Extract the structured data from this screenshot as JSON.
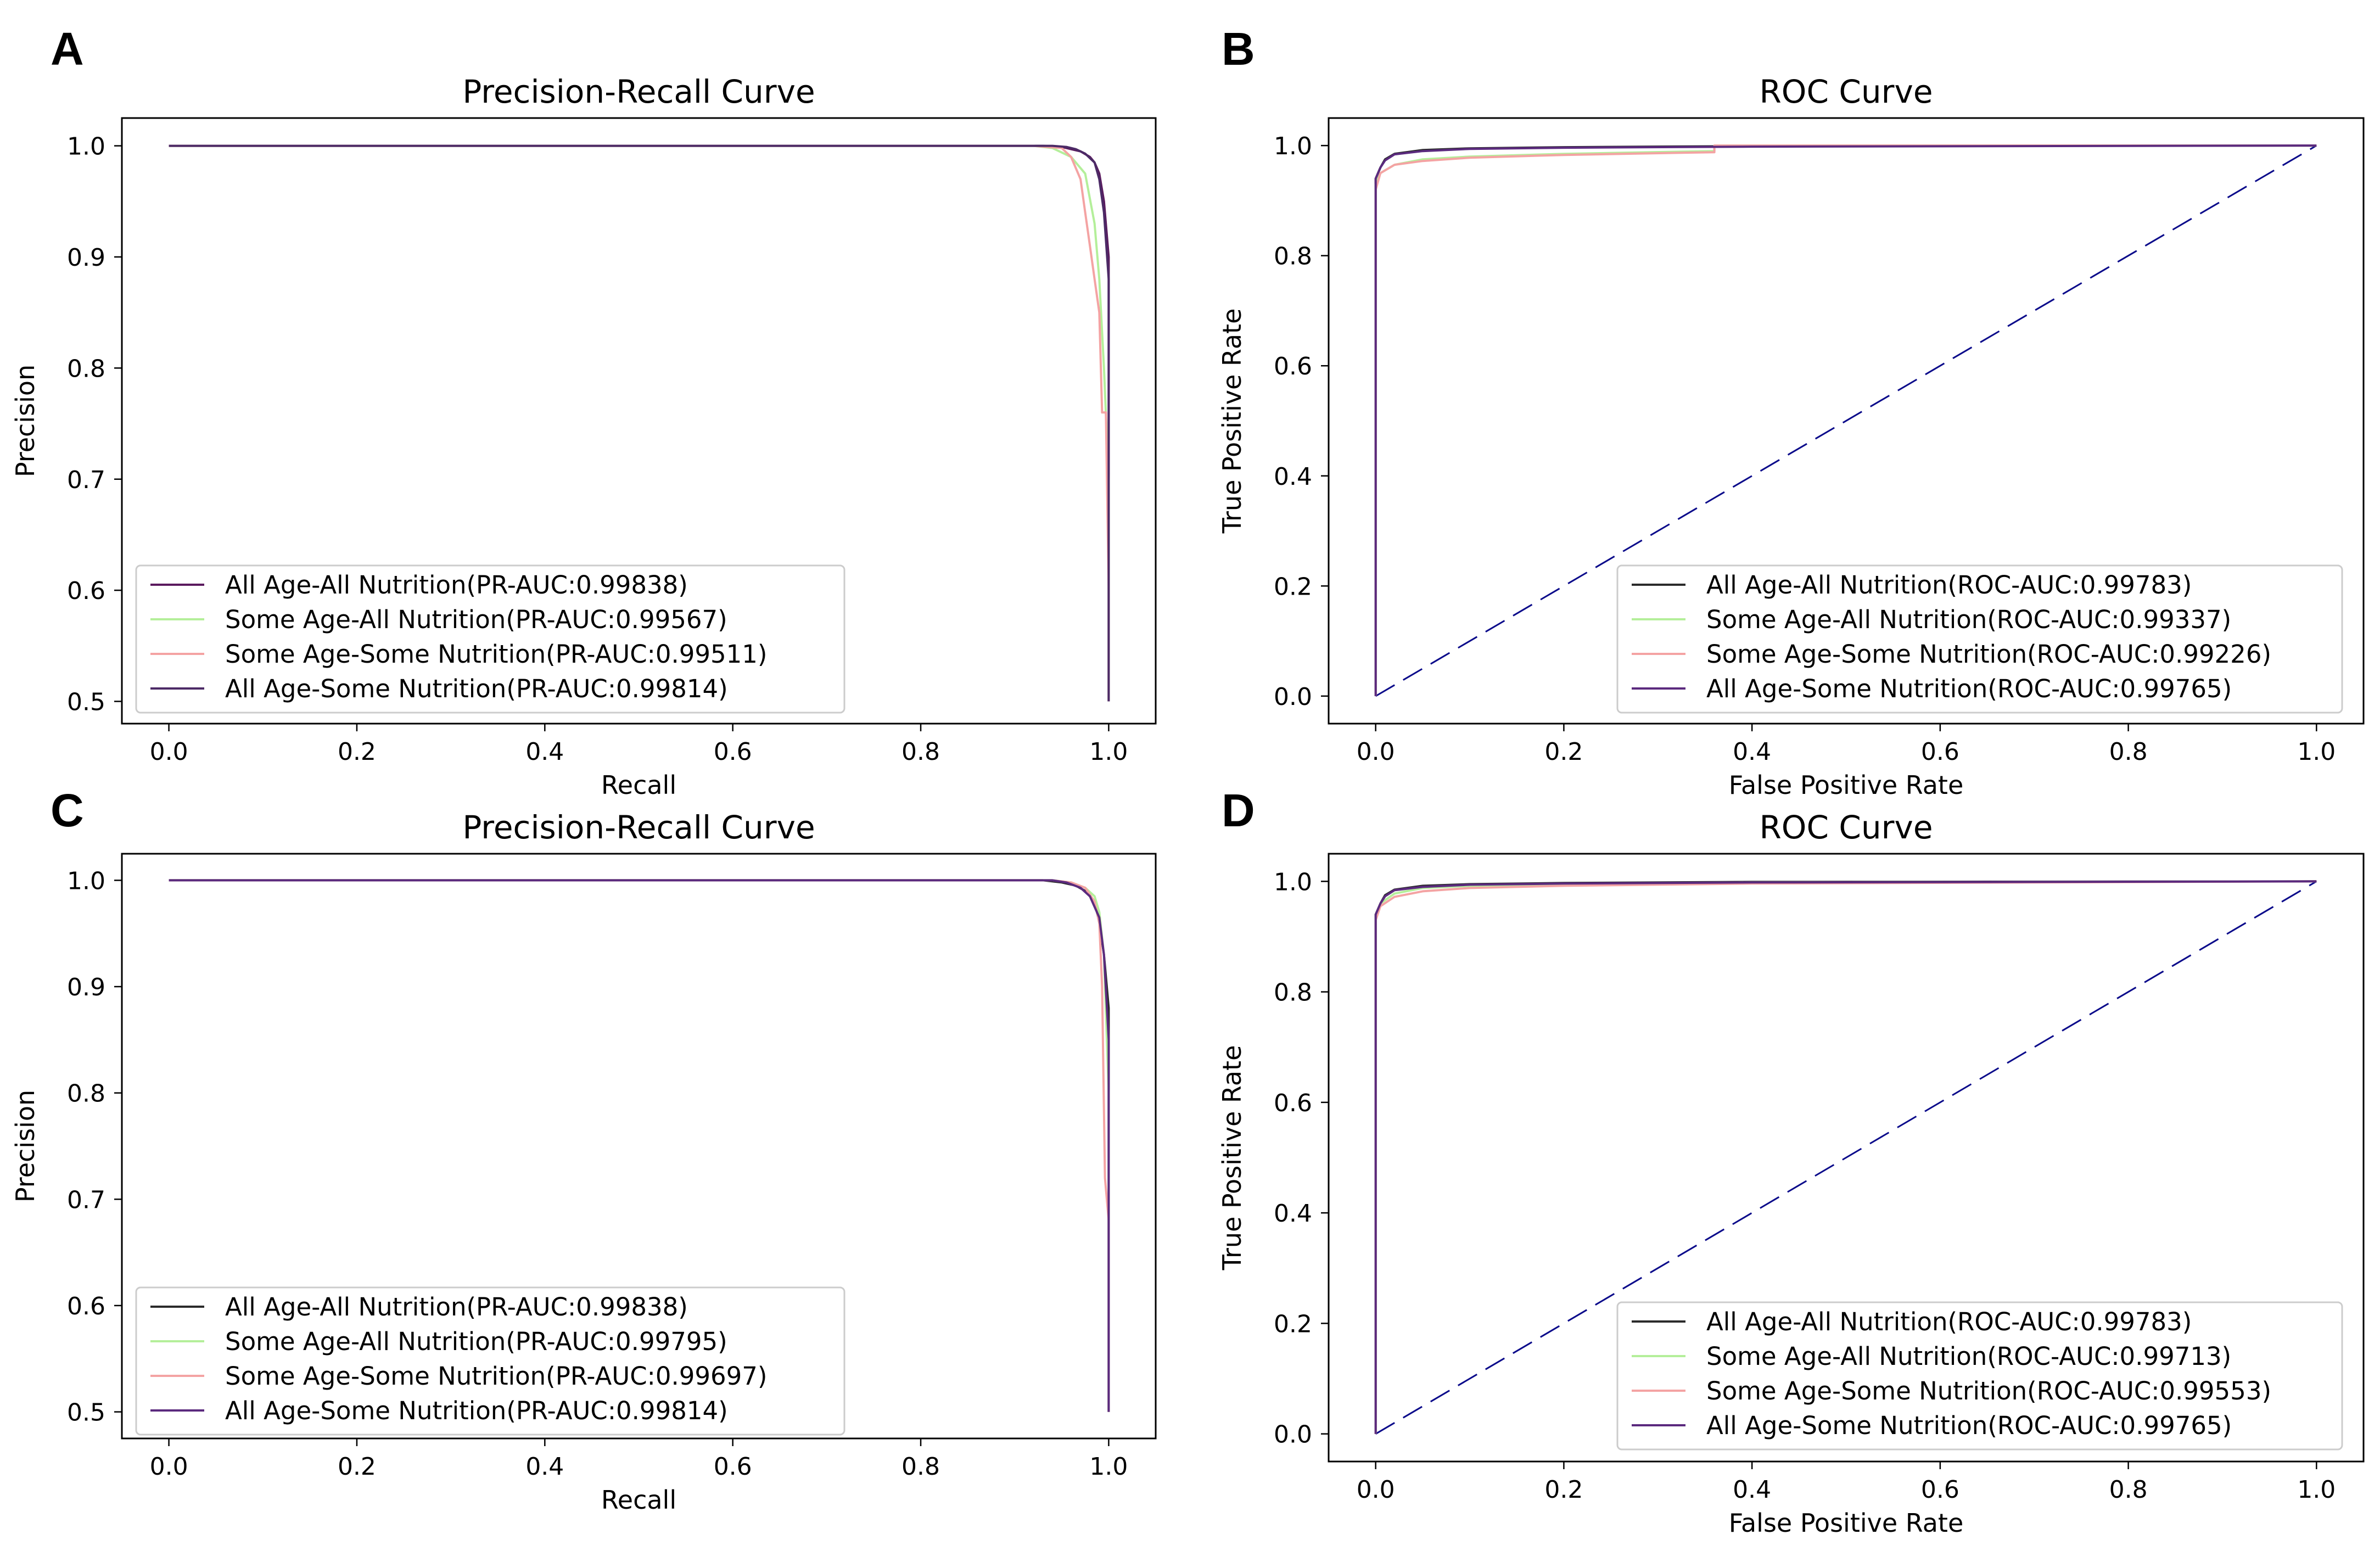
{
  "chart_data": [
    {
      "id": "A",
      "panel_label": "A",
      "type": "line",
      "kind": "pr",
      "title": "Precision-Recall Curve",
      "xlabel": "Recall",
      "ylabel": "Precision",
      "xlim": [
        -0.05,
        1.05
      ],
      "ylim": [
        0.48,
        1.025
      ],
      "xticks": [
        0.0,
        0.2,
        0.4,
        0.6,
        0.8,
        1.0
      ],
      "xtick_labels": [
        "0.0",
        "0.2",
        "0.4",
        "0.6",
        "0.8",
        "1.0"
      ],
      "yticks": [
        0.5,
        0.6,
        0.7,
        0.8,
        0.9,
        1.0
      ],
      "ytick_labels": [
        "0.5",
        "0.6",
        "0.7",
        "0.8",
        "0.9",
        "1.0"
      ],
      "grid": false,
      "legend_position": "lower-left",
      "series": [
        {
          "name": "All Age-All Nutrition(PR-AUC:0.99838)",
          "color": "#5b1a5e",
          "x": [
            0,
            0.93,
            0.95,
            0.96,
            0.97,
            0.98,
            0.985,
            0.99,
            0.995,
            1.0,
            1.0
          ],
          "y": [
            1.0,
            1.0,
            0.999,
            0.997,
            0.995,
            0.99,
            0.985,
            0.975,
            0.95,
            0.9,
            0.5
          ]
        },
        {
          "name": "Some Age-All Nutrition(PR-AUC:0.99567)",
          "color": "#b4ef9a",
          "x": [
            0,
            0.92,
            0.94,
            0.96,
            0.975,
            0.985,
            0.99,
            0.995,
            1.0,
            1.0
          ],
          "y": [
            1.0,
            1.0,
            0.998,
            0.99,
            0.975,
            0.93,
            0.88,
            0.8,
            0.7,
            0.5
          ]
        },
        {
          "name": "Some Age-Some Nutrition(PR-AUC:0.99511)",
          "color": "#f4a3a3",
          "x": [
            0,
            0.92,
            0.95,
            0.96,
            0.97,
            0.975,
            0.98,
            0.985,
            0.99,
            0.993,
            0.993,
            0.997,
            1.0,
            1.0
          ],
          "y": [
            1.0,
            1.0,
            0.998,
            0.99,
            0.97,
            0.94,
            0.91,
            0.88,
            0.85,
            0.76,
            0.76,
            0.76,
            0.6,
            0.5
          ]
        },
        {
          "name": "All Age-Some Nutrition(PR-AUC:0.99814)",
          "color": "#4c2a66",
          "x": [
            0,
            0.94,
            0.955,
            0.965,
            0.975,
            0.985,
            0.99,
            0.995,
            1.0,
            1.0
          ],
          "y": [
            1.0,
            1.0,
            0.999,
            0.997,
            0.993,
            0.985,
            0.97,
            0.94,
            0.88,
            0.5
          ]
        }
      ]
    },
    {
      "id": "B",
      "panel_label": "B",
      "type": "line",
      "kind": "roc",
      "title": "ROC Curve",
      "xlabel": "False Positive Rate",
      "ylabel": "True Positive Rate",
      "xlim": [
        -0.05,
        1.05
      ],
      "ylim": [
        -0.05,
        1.05
      ],
      "xticks": [
        0.0,
        0.2,
        0.4,
        0.6,
        0.8,
        1.0
      ],
      "xtick_labels": [
        "0.0",
        "0.2",
        "0.4",
        "0.6",
        "0.8",
        "1.0"
      ],
      "yticks": [
        0.0,
        0.2,
        0.4,
        0.6,
        0.8,
        1.0
      ],
      "ytick_labels": [
        "0.0",
        "0.2",
        "0.4",
        "0.6",
        "0.8",
        "1.0"
      ],
      "grid": false,
      "legend_position": "lower-right",
      "diagonal": {
        "x": [
          0,
          1
        ],
        "y": [
          0,
          1
        ],
        "color": "#0a0a8a"
      },
      "series": [
        {
          "name": "All Age-All Nutrition(ROC-AUC:0.99783)",
          "color": "#2b2b2b",
          "x": [
            0,
            0,
            0.005,
            0.01,
            0.02,
            0.05,
            0.1,
            0.2,
            0.4,
            1.0
          ],
          "y": [
            0,
            0.94,
            0.96,
            0.975,
            0.985,
            0.992,
            0.995,
            0.997,
            0.999,
            1.0
          ]
        },
        {
          "name": "Some Age-All Nutrition(ROC-AUC:0.99337)",
          "color": "#b4ef9a",
          "x": [
            0,
            0,
            0.005,
            0.02,
            0.05,
            0.1,
            0.2,
            0.36,
            0.36,
            1.0
          ],
          "y": [
            0,
            0.93,
            0.95,
            0.965,
            0.975,
            0.98,
            0.985,
            0.99,
            1.0,
            1.0
          ]
        },
        {
          "name": "Some Age-Some Nutrition(ROC-AUC:0.99226)",
          "color": "#f4a3a3",
          "x": [
            0,
            0,
            0.005,
            0.02,
            0.05,
            0.1,
            0.2,
            0.36,
            0.36,
            1.0
          ],
          "y": [
            0,
            0.92,
            0.95,
            0.965,
            0.972,
            0.978,
            0.983,
            0.988,
            1.0,
            1.0
          ]
        },
        {
          "name": "All Age-Some Nutrition(ROC-AUC:0.99765)",
          "color": "#5b2a7e",
          "x": [
            0,
            0,
            0.005,
            0.01,
            0.02,
            0.05,
            0.1,
            0.2,
            0.4,
            1.0
          ],
          "y": [
            0,
            0.94,
            0.96,
            0.973,
            0.984,
            0.99,
            0.994,
            0.996,
            0.998,
            1.0
          ]
        }
      ]
    },
    {
      "id": "C",
      "panel_label": "C",
      "type": "line",
      "kind": "pr",
      "title": "Precision-Recall Curve",
      "xlabel": "Recall",
      "ylabel": "Precision",
      "xlim": [
        -0.05,
        1.05
      ],
      "ylim": [
        0.475,
        1.025
      ],
      "xticks": [
        0.0,
        0.2,
        0.4,
        0.6,
        0.8,
        1.0
      ],
      "xtick_labels": [
        "0.0",
        "0.2",
        "0.4",
        "0.6",
        "0.8",
        "1.0"
      ],
      "yticks": [
        0.5,
        0.6,
        0.7,
        0.8,
        0.9,
        1.0
      ],
      "ytick_labels": [
        "0.5",
        "0.6",
        "0.7",
        "0.8",
        "0.9",
        "1.0"
      ],
      "grid": false,
      "legend_position": "lower-left",
      "series": [
        {
          "name": "All Age-All Nutrition(PR-AUC:0.99838)",
          "color": "#2b2b2b",
          "x": [
            0,
            0.93,
            0.95,
            0.965,
            0.975,
            0.985,
            0.99,
            0.995,
            1.0,
            1.0
          ],
          "y": [
            1.0,
            1.0,
            0.998,
            0.995,
            0.99,
            0.98,
            0.96,
            0.93,
            0.88,
            0.5
          ]
        },
        {
          "name": "Some Age-All Nutrition(PR-AUC:0.99795)",
          "color": "#b4ef9a",
          "x": [
            0,
            0.94,
            0.96,
            0.975,
            0.985,
            0.99,
            0.995,
            1.0,
            1.0
          ],
          "y": [
            1.0,
            1.0,
            0.998,
            0.993,
            0.985,
            0.97,
            0.93,
            0.8,
            0.5
          ]
        },
        {
          "name": "Some Age-Some Nutrition(PR-AUC:0.99697)",
          "color": "#f4a3a3",
          "x": [
            0,
            0.94,
            0.96,
            0.975,
            0.985,
            0.99,
            0.993,
            0.996,
            1.0,
            1.0
          ],
          "y": [
            1.0,
            1.0,
            0.998,
            0.993,
            0.98,
            0.96,
            0.9,
            0.72,
            0.68,
            0.5
          ]
        },
        {
          "name": "All Age-Some Nutrition(PR-AUC:0.99814)",
          "color": "#5b2a7e",
          "x": [
            0,
            0.94,
            0.955,
            0.97,
            0.98,
            0.99,
            0.995,
            1.0,
            1.0
          ],
          "y": [
            1.0,
            1.0,
            0.998,
            0.993,
            0.985,
            0.965,
            0.93,
            0.85,
            0.5
          ]
        }
      ]
    },
    {
      "id": "D",
      "panel_label": "D",
      "type": "line",
      "kind": "roc",
      "title": "ROC Curve",
      "xlabel": "False Positive Rate",
      "ylabel": "True Positive Rate",
      "xlim": [
        -0.05,
        1.05
      ],
      "ylim": [
        -0.05,
        1.05
      ],
      "xticks": [
        0.0,
        0.2,
        0.4,
        0.6,
        0.8,
        1.0
      ],
      "xtick_labels": [
        "0.0",
        "0.2",
        "0.4",
        "0.6",
        "0.8",
        "1.0"
      ],
      "yticks": [
        0.0,
        0.2,
        0.4,
        0.6,
        0.8,
        1.0
      ],
      "ytick_labels": [
        "0.0",
        "0.2",
        "0.4",
        "0.6",
        "0.8",
        "1.0"
      ],
      "grid": false,
      "legend_position": "lower-right",
      "diagonal": {
        "x": [
          0,
          1
        ],
        "y": [
          0,
          1
        ],
        "color": "#0a0a8a"
      },
      "series": [
        {
          "name": "All Age-All Nutrition(ROC-AUC:0.99783)",
          "color": "#2b2b2b",
          "x": [
            0,
            0,
            0.005,
            0.01,
            0.02,
            0.05,
            0.1,
            0.2,
            0.4,
            1.0
          ],
          "y": [
            0,
            0.94,
            0.96,
            0.975,
            0.985,
            0.992,
            0.995,
            0.997,
            0.999,
            1.0
          ]
        },
        {
          "name": "Some Age-All Nutrition(ROC-AUC:0.99713)",
          "color": "#b4ef9a",
          "x": [
            0,
            0,
            0.005,
            0.02,
            0.05,
            0.1,
            0.2,
            0.4,
            1.0
          ],
          "y": [
            0,
            0.94,
            0.96,
            0.978,
            0.988,
            0.992,
            0.995,
            0.998,
            1.0
          ]
        },
        {
          "name": "Some Age-Some Nutrition(ROC-AUC:0.99553)",
          "color": "#f4a3a3",
          "x": [
            0,
            0,
            0.005,
            0.02,
            0.05,
            0.1,
            0.2,
            0.4,
            1.0
          ],
          "y": [
            0,
            0.93,
            0.955,
            0.972,
            0.982,
            0.988,
            0.992,
            0.996,
            1.0
          ]
        },
        {
          "name": "All Age-Some Nutrition(ROC-AUC:0.99765)",
          "color": "#5b2a7e",
          "x": [
            0,
            0,
            0.005,
            0.01,
            0.02,
            0.05,
            0.1,
            0.2,
            0.4,
            1.0
          ],
          "y": [
            0,
            0.94,
            0.96,
            0.973,
            0.984,
            0.99,
            0.994,
            0.996,
            0.998,
            1.0
          ]
        }
      ]
    }
  ]
}
